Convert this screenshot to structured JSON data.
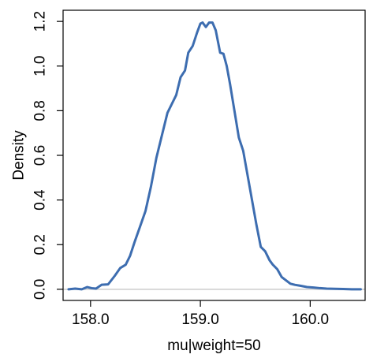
{
  "chart_data": {
    "type": "line",
    "title": "",
    "xlabel": "mu|weight=50",
    "ylabel": "Density",
    "xlim": [
      157.75,
      160.5
    ],
    "ylim": [
      -0.05,
      1.25
    ],
    "x_ticks": [
      {
        "value": 158.0,
        "label": "158.0"
      },
      {
        "value": 159.0,
        "label": "159.0"
      },
      {
        "value": 160.0,
        "label": "160.0"
      }
    ],
    "y_ticks": [
      {
        "value": 0.0,
        "label": "0.0"
      },
      {
        "value": 0.2,
        "label": "0.2"
      },
      {
        "value": 0.4,
        "label": "0.4"
      },
      {
        "value": 0.6,
        "label": "0.6"
      },
      {
        "value": 0.8,
        "label": "0.8"
      },
      {
        "value": 1.0,
        "label": "1.0"
      },
      {
        "value": 1.2,
        "label": "1.2"
      }
    ],
    "baseline": 0.0,
    "grid": false,
    "legend": "none",
    "colors": {
      "line": "#3d6db0",
      "baseline": "#cccccc",
      "axis": "#000000"
    },
    "series": [
      {
        "x": [
          157.8,
          157.86,
          157.92,
          157.97,
          158.01,
          158.05,
          158.1,
          158.16,
          158.22,
          158.27,
          158.32,
          158.36,
          158.4,
          158.45,
          158.5,
          158.55,
          158.6,
          158.65,
          158.7,
          158.74,
          158.78,
          158.82,
          158.86,
          158.89,
          158.93,
          158.97,
          159.0,
          159.02,
          159.05,
          159.08,
          159.11,
          159.14,
          159.18,
          159.21,
          159.24,
          159.27,
          159.31,
          159.35,
          159.39,
          159.43,
          159.47,
          159.51,
          159.55,
          159.59,
          159.63,
          159.66,
          159.7,
          159.74,
          159.78,
          159.82,
          159.86,
          159.92,
          159.97,
          160.03,
          160.09,
          160.15,
          160.22,
          160.3,
          160.38,
          160.46
        ],
        "y": [
          0.0,
          0.003,
          0.0,
          0.01,
          0.005,
          0.003,
          0.02,
          0.022,
          0.06,
          0.095,
          0.11,
          0.15,
          0.21,
          0.28,
          0.35,
          0.46,
          0.59,
          0.69,
          0.79,
          0.83,
          0.87,
          0.95,
          0.98,
          1.06,
          1.09,
          1.15,
          1.19,
          1.195,
          1.175,
          1.195,
          1.195,
          1.16,
          1.06,
          1.055,
          1.0,
          0.92,
          0.8,
          0.68,
          0.62,
          0.51,
          0.4,
          0.29,
          0.19,
          0.17,
          0.13,
          0.11,
          0.09,
          0.055,
          0.04,
          0.025,
          0.02,
          0.015,
          0.01,
          0.008,
          0.005,
          0.003,
          0.002,
          0.001,
          0.0,
          0.0
        ]
      }
    ]
  }
}
